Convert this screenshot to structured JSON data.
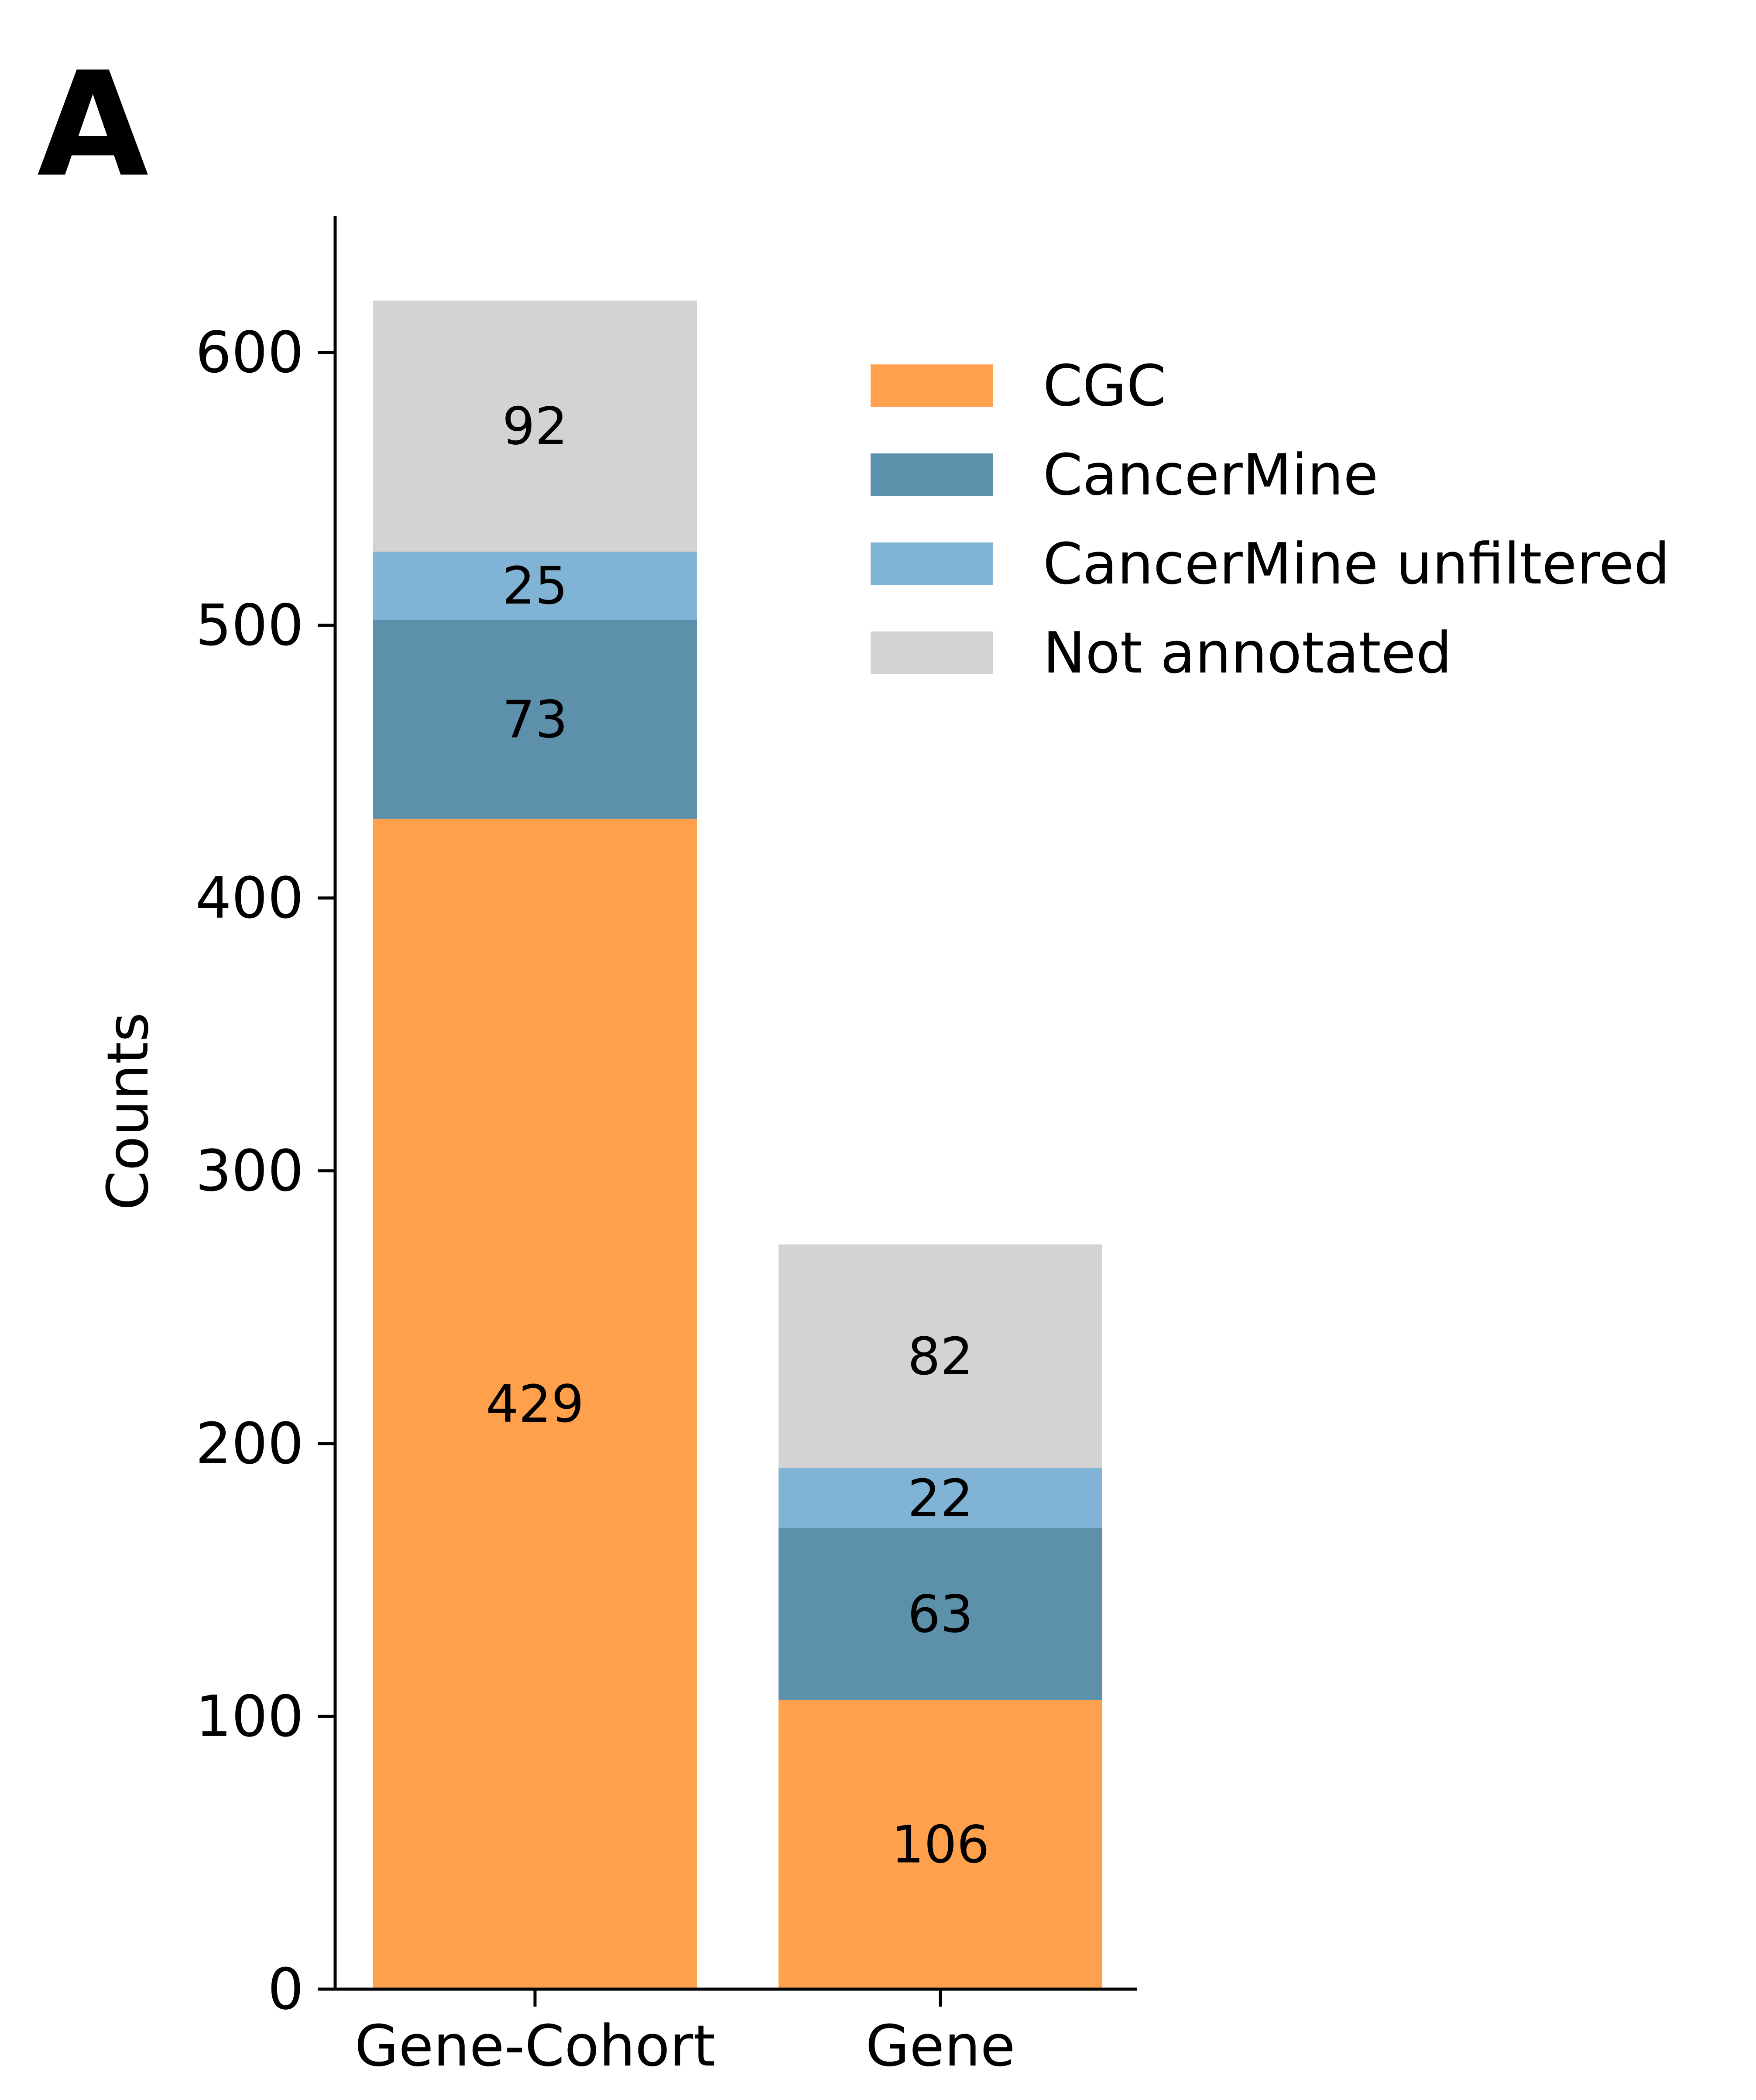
{
  "panel_label": "A",
  "chart_data": {
    "type": "bar",
    "stacked": true,
    "categories": [
      "Gene-Cohort",
      "Gene"
    ],
    "series": [
      {
        "name": "CGC",
        "color": "#fea04c",
        "values": [
          429,
          106
        ]
      },
      {
        "name": "CancerMine",
        "color": "#5d90aa",
        "values": [
          73,
          63
        ]
      },
      {
        "name": "CancerMine unfiltered",
        "color": "#80b3d5",
        "values": [
          25,
          22
        ]
      },
      {
        "name": "Not annotated",
        "color": "#d3d3d3",
        "values": [
          92,
          82
        ]
      }
    ],
    "title": "",
    "xlabel": "",
    "ylabel": "Counts",
    "ylim": [
      0,
      650
    ],
    "yticks": [
      0,
      100,
      200,
      300,
      400,
      500,
      600
    ],
    "grid": false,
    "legend_position": "top-right"
  }
}
